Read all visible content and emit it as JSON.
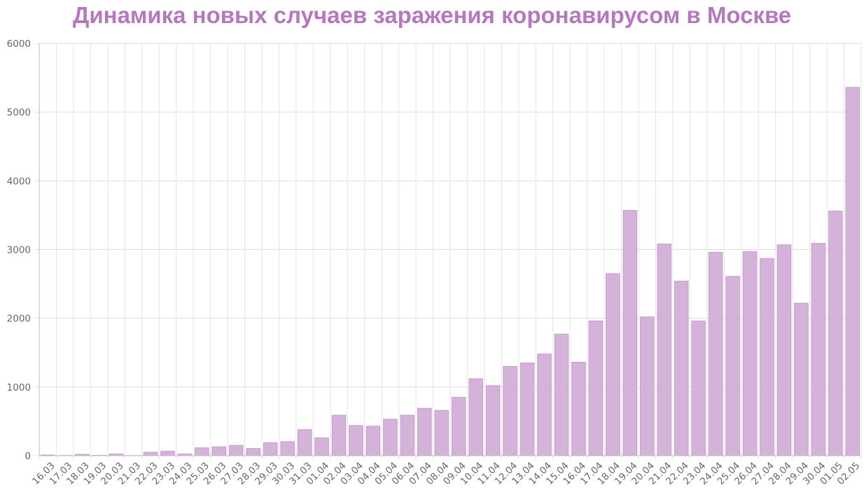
{
  "chart_data": {
    "type": "bar",
    "title": "Динамика новых случаев заражения коронавирусом в Москве",
    "xlabel": "",
    "ylabel": "",
    "ylim": [
      0,
      6000
    ],
    "yticks": [
      0,
      1000,
      2000,
      3000,
      4000,
      5000,
      6000
    ],
    "grid": true,
    "legend": "none",
    "bar_color": "#d4b2d9",
    "bar_edge_color": "#c79ccd",
    "title_color": "#b478bc",
    "categories": [
      "16.03",
      "17.03",
      "18.03",
      "19.03",
      "20.03",
      "21.03",
      "22.03",
      "23.03",
      "24.03",
      "25.03",
      "26.03",
      "27.03",
      "28.03",
      "29.03",
      "30.03",
      "31.03",
      "01.04",
      "02.04",
      "03.04",
      "04.04",
      "05.04",
      "06.04",
      "07.04",
      "08.04",
      "09.04",
      "10.04",
      "11.04",
      "12.04",
      "13.04",
      "14.04",
      "15.04",
      "16.04",
      "17.04",
      "18.04",
      "19.04",
      "20.04",
      "21.04",
      "22.04",
      "23.04",
      "24.04",
      "25.04",
      "26.04",
      "27.04",
      "28.04",
      "29.04",
      "30.04",
      "01.05",
      "02.05"
    ],
    "values": [
      10,
      3,
      20,
      5,
      25,
      2,
      50,
      65,
      25,
      115,
      130,
      150,
      105,
      190,
      205,
      380,
      260,
      590,
      440,
      430,
      530,
      590,
      690,
      660,
      850,
      1120,
      1020,
      1300,
      1350,
      1480,
      1770,
      1360,
      1960,
      2650,
      3570,
      2020,
      3080,
      2540,
      1960,
      2960,
      2610,
      2970,
      2870,
      3070,
      2220,
      3090,
      3560,
      5360
    ]
  }
}
